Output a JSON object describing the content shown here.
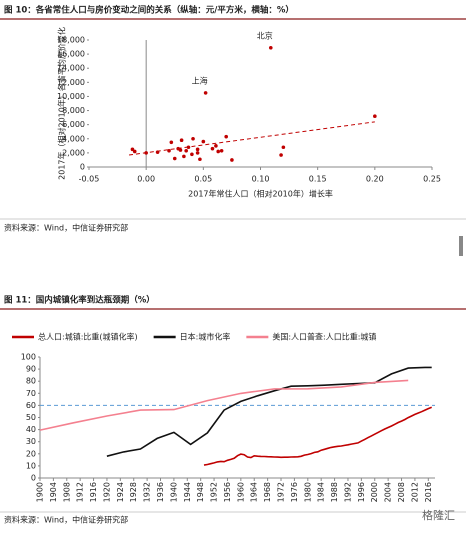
{
  "chart_data": [
    {
      "type": "scatter",
      "title": "图 10：各省常住人口与房价变动之间的关系（纵轴：元/平方米，横轴：%）",
      "y_label": "2017年（相对2010年）各省平均房价变化",
      "x_label": "2017年常住人口（相对2010年）增长率",
      "source": "资料来源：Wind，中信证券研究部",
      "color": "#c00000",
      "x": [
        0.109,
        0.052,
        0.2,
        -0.012,
        -0.01,
        0.0,
        0.02,
        0.022,
        0.025,
        0.028,
        0.03,
        0.031,
        0.033,
        0.035,
        0.037,
        0.04,
        0.041,
        0.045,
        0.047,
        0.05,
        0.058,
        0.061,
        0.063,
        0.066,
        0.07,
        0.075,
        0.12,
        0.118,
        0.045,
        0.01
      ],
      "values": [
        16900,
        10500,
        7200,
        2500,
        2200,
        2000,
        2300,
        3500,
        1200,
        2600,
        2400,
        3800,
        1500,
        2300,
        2800,
        1800,
        4000,
        2500,
        1100,
        3600,
        2600,
        3000,
        2200,
        2300,
        4300,
        1000,
        2800,
        1700,
        2000,
        2100
      ],
      "annotations": [
        {
          "text": "上海",
          "x": 0.052,
          "y": 10500
        },
        {
          "text": "北京",
          "x": 0.109,
          "y": 16900
        }
      ],
      "trendline": {
        "x": [
          -0.015,
          0.2
        ],
        "y": [
          1700,
          6400
        ],
        "color": "#c00000"
      },
      "xlim": [
        -0.05,
        0.25
      ],
      "xticks": [
        {
          "value": -0.05,
          "label": "-0.05"
        },
        {
          "value": 0,
          "label": "0.00"
        },
        {
          "value": 0.05,
          "label": "0.05"
        },
        {
          "value": 0.1,
          "label": "0.10"
        },
        {
          "value": 0.15,
          "label": "0.15"
        },
        {
          "value": 0.2,
          "label": "0.20"
        },
        {
          "value": 0.25,
          "label": "0.25"
        }
      ],
      "ylim": [
        0,
        18000
      ],
      "yticks": [
        0,
        {
          "value": 2000,
          "label": "2,000"
        },
        {
          "value": 4000,
          "label": "4,000"
        },
        {
          "value": 6000,
          "label": "6,000"
        },
        {
          "value": 8000,
          "label": "8,000"
        },
        {
          "value": 10000,
          "label": "10,000"
        },
        {
          "value": 12000,
          "label": "12,000"
        },
        {
          "value": 14000,
          "label": "14,000"
        },
        {
          "value": 16000,
          "label": "16,000"
        },
        {
          "value": 18000,
          "label": "18,000"
        }
      ]
    },
    {
      "type": "line",
      "title": "图 11：国内城镇化率到达瓶颈期（%）",
      "source": "资料来源：Wind，中信证券研究部",
      "legend": "top",
      "reference_line": {
        "value": 60,
        "color": "#5b9bd5"
      },
      "xlim": [
        1900,
        2018
      ],
      "xticks": [
        1900,
        1904,
        1908,
        1912,
        1916,
        1920,
        1924,
        1928,
        1932,
        1936,
        1940,
        1944,
        1948,
        1952,
        1956,
        1960,
        1964,
        1968,
        1972,
        1976,
        1980,
        1984,
        1988,
        1992,
        1996,
        2000,
        2004,
        2008,
        2012,
        2016
      ],
      "ylim": [
        0,
        100
      ],
      "yticks": [
        0,
        10,
        20,
        30,
        40,
        50,
        60,
        70,
        80,
        90,
        100
      ],
      "series": [
        {
          "name": "总人口:城镇:比重(城镇化率)",
          "color": "#c00000",
          "x": [
            1949,
            1950,
            1951,
            1952,
            1953,
            1954,
            1955,
            1956,
            1957,
            1958,
            1959,
            1960,
            1961,
            1962,
            1963,
            1964,
            1965,
            1966,
            1967,
            1968,
            1969,
            1970,
            1971,
            1972,
            1973,
            1974,
            1975,
            1976,
            1977,
            1978,
            1979,
            1980,
            1981,
            1982,
            1983,
            1984,
            1985,
            1986,
            1987,
            1988,
            1989,
            1990,
            1991,
            1992,
            1993,
            1994,
            1995,
            1996,
            1997,
            1998,
            1999,
            2000,
            2001,
            2002,
            2003,
            2004,
            2005,
            2006,
            2007,
            2008,
            2009,
            2010,
            2011,
            2012,
            2013,
            2014,
            2015,
            2016,
            2017
          ],
          "values": [
            10.64,
            11.18,
            11.78,
            12.46,
            13.31,
            13.69,
            13.48,
            14.62,
            15.39,
            16.25,
            18.41,
            19.75,
            19.29,
            17.33,
            16.84,
            18.37,
            17.98,
            17.86,
            17.74,
            17.62,
            17.5,
            17.38,
            17.26,
            17.13,
            17.2,
            17.16,
            17.34,
            17.44,
            17.55,
            17.92,
            18.96,
            19.39,
            20.16,
            21.13,
            21.62,
            23.01,
            23.71,
            24.52,
            25.32,
            25.81,
            26.21,
            26.41,
            26.94,
            27.46,
            27.99,
            28.51,
            29.04,
            30.48,
            31.91,
            33.35,
            34.78,
            36.22,
            37.66,
            39.09,
            40.53,
            41.76,
            42.99,
            44.34,
            45.89,
            46.99,
            48.34,
            49.95,
            51.27,
            52.57,
            53.73,
            54.77,
            56.1,
            57.35,
            58.52
          ]
        },
        {
          "name": "日本:城市化率",
          "color": "#111111",
          "x": [
            1920,
            1925,
            1930,
            1935,
            1940,
            1945,
            1950,
            1955,
            1960,
            1965,
            1970,
            1975,
            1980,
            1985,
            1990,
            1995,
            2000,
            2005,
            2010,
            2015,
            2017
          ],
          "values": [
            18,
            21.6,
            24,
            32.7,
            37.7,
            27.8,
            37.3,
            56.1,
            63.3,
            67.9,
            72.1,
            75.9,
            76.2,
            76.7,
            77.4,
            78.1,
            78.7,
            86,
            90.8,
            91.4,
            91.4
          ]
        },
        {
          "name": "美国:人口普查:人口比重:城镇",
          "color": "#f4808f",
          "x": [
            1900,
            1910,
            1920,
            1930,
            1940,
            1950,
            1960,
            1970,
            1980,
            1990,
            2000,
            2010
          ],
          "values": [
            39.6,
            45.6,
            51.2,
            56.1,
            56.5,
            64,
            69.9,
            73.6,
            73.7,
            75.3,
            79,
            80.7
          ]
        }
      ]
    }
  ],
  "watermark": "格隆汇"
}
